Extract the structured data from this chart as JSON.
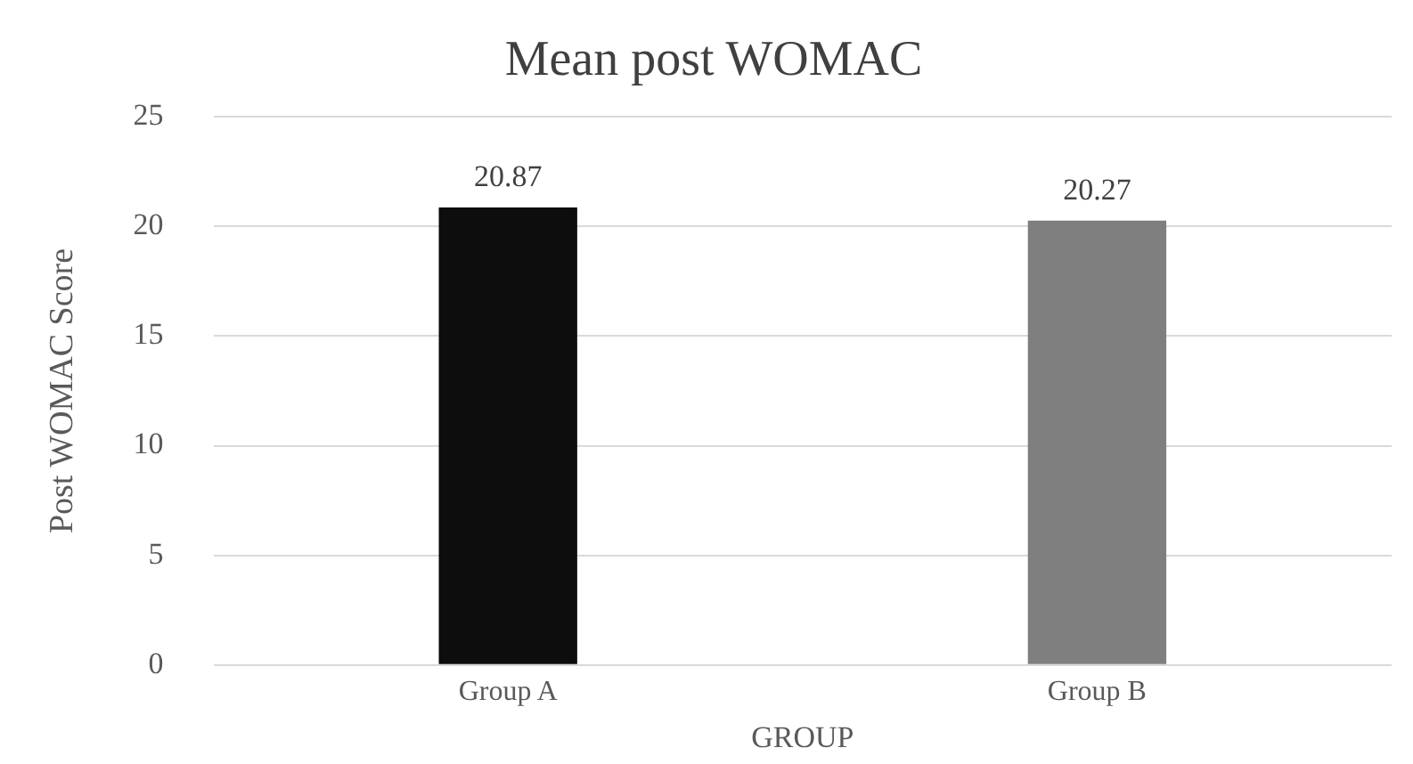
{
  "chart_data": {
    "type": "bar",
    "title": "Mean post WOMAC",
    "xlabel": "GROUP",
    "ylabel": "Post WOMAC Score",
    "categories": [
      "Group A",
      "Group B"
    ],
    "values": [
      20.87,
      20.27
    ],
    "colors": [
      "#0d0d0d",
      "#7f7f7f"
    ],
    "ylim": [
      0,
      25
    ],
    "yticks": [
      0,
      5,
      10,
      15,
      20,
      25
    ],
    "grid": "y",
    "legend": false,
    "data_labels": true
  }
}
